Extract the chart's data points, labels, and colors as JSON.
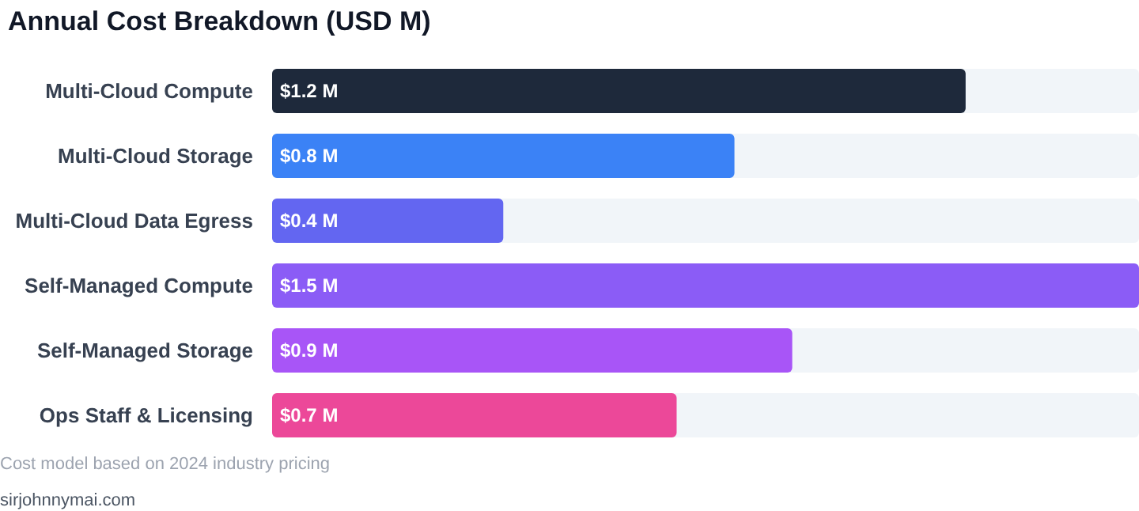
{
  "chart_data": {
    "type": "bar",
    "orientation": "horizontal",
    "title": "Annual Cost Breakdown (USD M)",
    "categories": [
      "Multi-Cloud Compute",
      "Multi-Cloud Storage",
      "Multi-Cloud Data Egress",
      "Self-Managed Compute",
      "Self-Managed Storage",
      "Ops Staff & Licensing"
    ],
    "values": [
      1.2,
      0.8,
      0.4,
      1.5,
      0.9,
      0.7
    ],
    "colors": [
      "#1e293b",
      "#3b82f6",
      "#6366f1",
      "#8b5cf6",
      "#a855f7",
      "#ec4899"
    ],
    "value_labels": [
      "$1.2 M",
      "$0.8 M",
      "$0.4 M",
      "$1.5 M",
      "$0.9 M",
      "$0.7 M"
    ],
    "xlim": [
      0,
      1.5
    ],
    "tick_labels": "y",
    "annotations": [
      "Cost model based on 2024 industry pricing",
      "sirjohnnymai.com"
    ]
  }
}
